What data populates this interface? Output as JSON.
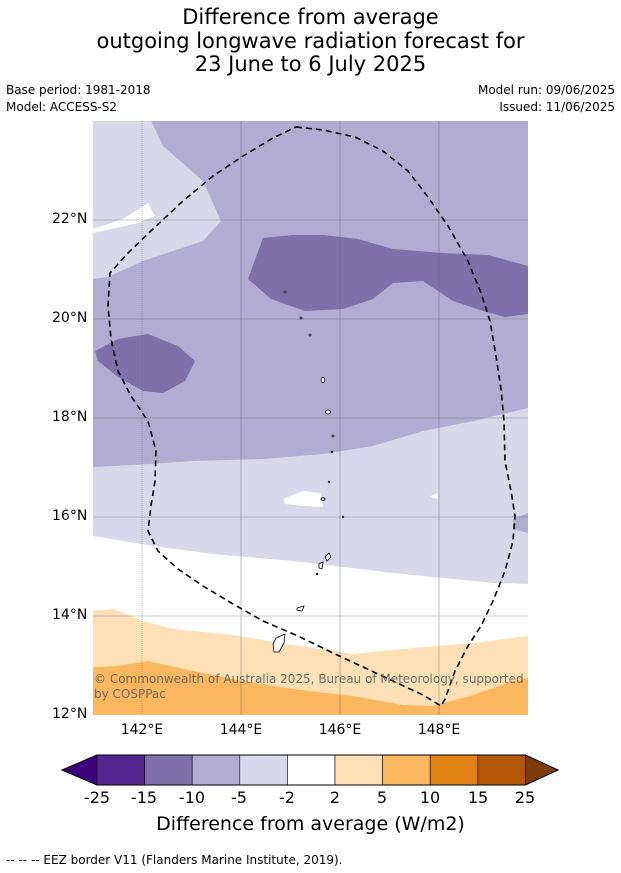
{
  "title": {
    "line1": "Difference from average",
    "line2": "outgoing longwave radiation forecast for",
    "line3": "23 June to 6 July 2025"
  },
  "meta": {
    "base_period": "Base period: 1981-2018",
    "model": "Model: ACCESS-S2",
    "model_run": "Model run: 09/06/2025",
    "issued": "Issued: 11/06/2025"
  },
  "map": {
    "lat_labels": [
      "22°N",
      "20°N",
      "18°N",
      "16°N",
      "14°N",
      "12°N"
    ],
    "lon_labels": [
      "142°E",
      "144°E",
      "146°E",
      "148°E"
    ],
    "copyright": "© Commonwealth of Australia 2025, Bureau of Meteorology, supported by COSPPac"
  },
  "colorbar": {
    "ticks": [
      "-25",
      "-15",
      "-10",
      "-5",
      "-2",
      "2",
      "5",
      "10",
      "15",
      "25"
    ],
    "colors": [
      "#3f007d",
      "#54278f",
      "#7e71ab",
      "#b2abd2",
      "#d8d8ea",
      "#ffffff",
      "#fde0b6",
      "#fbb75f",
      "#e08214",
      "#b35806",
      "#7f3b08"
    ],
    "label": "Difference from average (W/m2)"
  },
  "footer": "--  --  -- EEZ border V11 (Flanders Marine Institute, 2019)."
}
